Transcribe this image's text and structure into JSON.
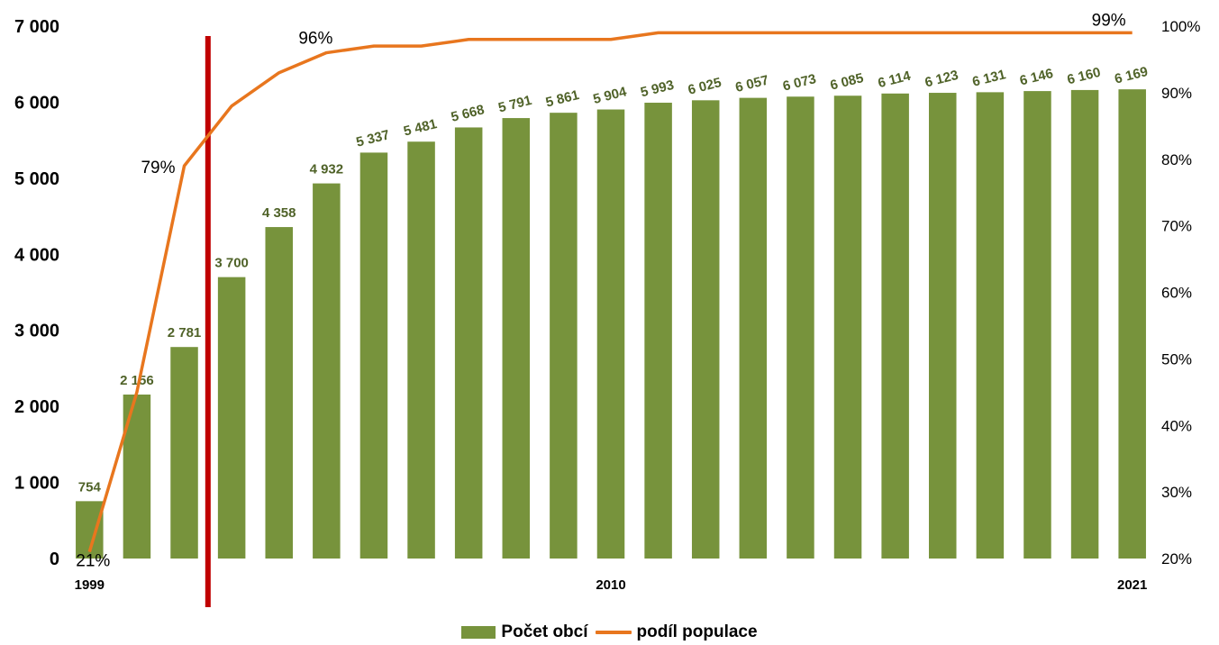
{
  "chart_data": {
    "type": "bar",
    "title": "",
    "categories": [
      "1999",
      "2000",
      "2001",
      "2002",
      "2003",
      "2004",
      "2005",
      "2006",
      "2007",
      "2008",
      "2009",
      "2010",
      "2011",
      "2012",
      "2013",
      "2014",
      "2015",
      "2016",
      "2017",
      "2018",
      "2019",
      "2020",
      "2021"
    ],
    "x_tick_labels": [
      "1999",
      "",
      "",
      "",
      "",
      "",
      "",
      "",
      "",
      "",
      "",
      "2010",
      "",
      "",
      "",
      "",
      "",
      "",
      "",
      "",
      "",
      "",
      "2021"
    ],
    "series": [
      {
        "name": "Počet obcí",
        "type": "bar",
        "axis": "left",
        "color": "#77933c",
        "values": [
          754,
          2156,
          2781,
          3700,
          4358,
          4932,
          5337,
          5481,
          5668,
          5791,
          5861,
          5904,
          5993,
          6025,
          6057,
          6073,
          6085,
          6114,
          6123,
          6131,
          6146,
          6160,
          6169
        ],
        "data_labels": [
          "754",
          "2 156",
          "2 781",
          "3 700",
          "4 358",
          "4 932",
          "5 337",
          "5 481",
          "5 668",
          "5 791",
          "5 861",
          "5 904",
          "5 993",
          "6 025",
          "6 057",
          "6 073",
          "6 085",
          "6 114",
          "6 123",
          "6 131",
          "6 146",
          "6 160",
          "6 169"
        ]
      },
      {
        "name": "podíl populace",
        "type": "line",
        "axis": "right",
        "color": "#e8761e",
        "values": [
          21,
          45,
          79,
          88,
          93,
          96,
          97,
          97,
          98,
          98,
          98,
          98,
          99,
          99,
          99,
          99,
          99,
          99,
          99,
          99,
          99,
          99,
          99
        ],
        "data_labels": [
          "21%",
          "",
          "79%",
          "",
          "",
          "96%",
          "",
          "",
          "",
          "",
          "",
          "",
          "",
          "",
          "",
          "",
          "",
          "",
          "",
          "",
          "",
          "",
          "99%"
        ]
      }
    ],
    "y_left": {
      "min": 0,
      "max": 7000,
      "step": 1000,
      "tick_labels": [
        "0",
        "1 000",
        "2 000",
        "3 000",
        "4 000",
        "5 000",
        "6 000",
        "7 000"
      ]
    },
    "y_right": {
      "min": 20,
      "max": 100,
      "step": 10,
      "tick_labels": [
        "20%",
        "30%",
        "40%",
        "50%",
        "60%",
        "70%",
        "80%",
        "90%",
        "100%"
      ]
    },
    "marker_line": {
      "between": [
        "2001",
        "2002"
      ],
      "color": "#c00000"
    },
    "grid": false,
    "legend": {
      "placement": "bottom",
      "items": [
        {
          "label": "Počet obcí",
          "color": "#77933c",
          "kind": "bar"
        },
        {
          "label": "podíl populace",
          "color": "#e8761e",
          "kind": "line"
        }
      ]
    }
  }
}
